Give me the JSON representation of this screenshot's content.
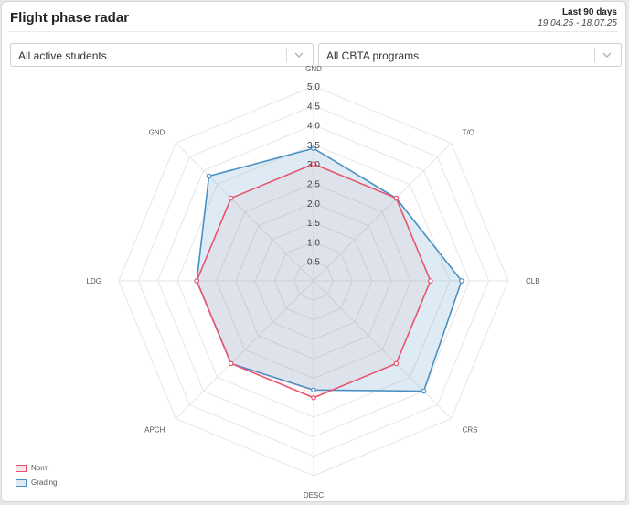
{
  "header": {
    "title": "Flight phase radar",
    "period_label": "Last 90 days",
    "period_range": "19.04.25 - 18.07.25"
  },
  "filters": {
    "students": "All active students",
    "programs": "All CBTA programs"
  },
  "chart_data": {
    "type": "radar",
    "categories": [
      "GND",
      "T/O",
      "CLB",
      "CRS",
      "DESC",
      "APCH",
      "LDG",
      "GND"
    ],
    "rlim": [
      0,
      5
    ],
    "ticks": [
      "0.5",
      "1.0",
      "1.5",
      "2.0",
      "2.5",
      "3.0",
      "3.5",
      "4.0",
      "4.5",
      "5.0"
    ],
    "grid": true,
    "legend": "bottom-left",
    "series": [
      {
        "name": "Norm",
        "color": "#e8546e",
        "values": [
          3.0,
          3.0,
          3.0,
          3.0,
          3.0,
          3.0,
          3.0,
          3.0
        ]
      },
      {
        "name": "Grading",
        "color": "#4a90c4",
        "values": [
          3.4,
          3.0,
          3.8,
          4.0,
          2.8,
          3.0,
          3.0,
          3.8
        ]
      }
    ]
  }
}
